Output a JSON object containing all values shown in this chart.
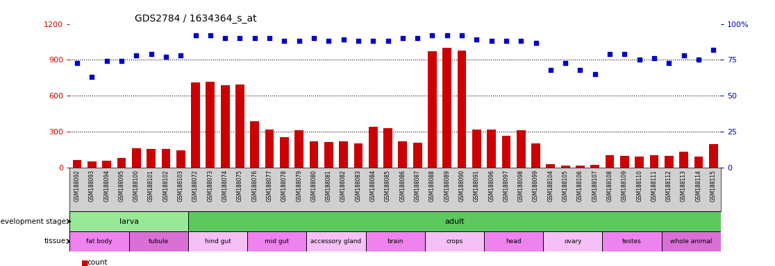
{
  "title": "GDS2784 / 1634364_s_at",
  "samples": [
    "GSM188092",
    "GSM188093",
    "GSM188094",
    "GSM188095",
    "GSM188100",
    "GSM188101",
    "GSM188102",
    "GSM188103",
    "GSM188072",
    "GSM188073",
    "GSM188074",
    "GSM188075",
    "GSM188076",
    "GSM188077",
    "GSM188078",
    "GSM188079",
    "GSM188080",
    "GSM188081",
    "GSM188082",
    "GSM188083",
    "GSM188084",
    "GSM188085",
    "GSM188086",
    "GSM188087",
    "GSM188088",
    "GSM188089",
    "GSM188090",
    "GSM188091",
    "GSM188096",
    "GSM188097",
    "GSM188098",
    "GSM188099",
    "GSM188104",
    "GSM188105",
    "GSM188106",
    "GSM188107",
    "GSM188108",
    "GSM188109",
    "GSM188110",
    "GSM188111",
    "GSM188112",
    "GSM188113",
    "GSM188114",
    "GSM188115"
  ],
  "counts": [
    65,
    50,
    55,
    80,
    160,
    155,
    155,
    145,
    710,
    720,
    690,
    695,
    390,
    315,
    255,
    310,
    220,
    215,
    220,
    200,
    340,
    330,
    220,
    210,
    970,
    1000,
    975,
    315,
    315,
    265,
    310,
    200,
    30,
    15,
    15,
    25,
    105,
    100,
    90,
    105,
    100,
    130,
    95,
    195
  ],
  "percentiles_pct": [
    73,
    63,
    74,
    74,
    78,
    79,
    77,
    78,
    92,
    92,
    90,
    90,
    90,
    90,
    88,
    88,
    90,
    88,
    89,
    88,
    88,
    88,
    90,
    90,
    92,
    92,
    92,
    89,
    88,
    88,
    88,
    87,
    68,
    73,
    68,
    65,
    79,
    79,
    75,
    76,
    73,
    78,
    75,
    82
  ],
  "dev_stage_groups": [
    {
      "label": "larva",
      "start": 0,
      "end": 8
    },
    {
      "label": "adult",
      "start": 8,
      "end": 44
    }
  ],
  "tissue_groups": [
    {
      "label": "fat body",
      "start": 0,
      "end": 4,
      "color": "#ee82ee"
    },
    {
      "label": "tubule",
      "start": 4,
      "end": 8,
      "color": "#da70d6"
    },
    {
      "label": "hind gut",
      "start": 8,
      "end": 12,
      "color": "#f5c0f5"
    },
    {
      "label": "mid gut",
      "start": 12,
      "end": 16,
      "color": "#ee82ee"
    },
    {
      "label": "accessory gland",
      "start": 16,
      "end": 20,
      "color": "#f5c0f5"
    },
    {
      "label": "brain",
      "start": 20,
      "end": 24,
      "color": "#ee82ee"
    },
    {
      "label": "crops",
      "start": 24,
      "end": 28,
      "color": "#f5c0f5"
    },
    {
      "label": "head",
      "start": 28,
      "end": 32,
      "color": "#ee82ee"
    },
    {
      "label": "ovary",
      "start": 32,
      "end": 36,
      "color": "#f5c0f5"
    },
    {
      "label": "testes",
      "start": 36,
      "end": 40,
      "color": "#ee82ee"
    },
    {
      "label": "whole animal",
      "start": 40,
      "end": 44,
      "color": "#da70d6"
    }
  ],
  "bar_color": "#cc0000",
  "dot_color": "#0000cc",
  "left_ylim": [
    0,
    1200
  ],
  "left_yticks": [
    0,
    300,
    600,
    900,
    1200
  ],
  "right_labels": [
    "0",
    "25",
    "50",
    "75",
    "100%"
  ],
  "grid_lines": [
    300,
    600,
    900
  ],
  "dev_stage_green_light": "#98e898",
  "dev_stage_green_dark": "#5dc85d",
  "bg_tick_color": "#d0d0d0"
}
